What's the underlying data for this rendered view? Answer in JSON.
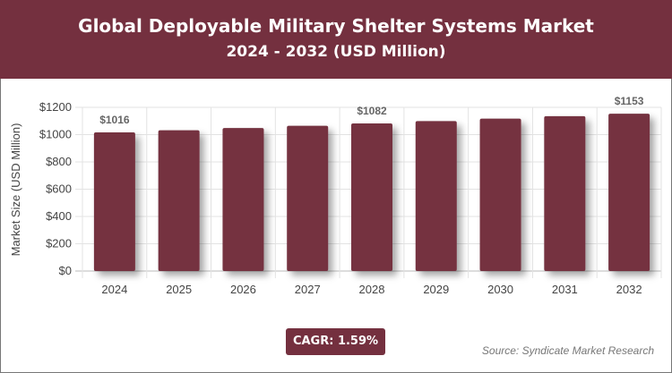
{
  "header": {
    "title": "Global Deployable Military Shelter Systems Market",
    "subtitle": "2024 - 2032 (USD Million)"
  },
  "chart_data": {
    "type": "bar",
    "categories": [
      "2024",
      "2025",
      "2026",
      "2027",
      "2028",
      "2029",
      "2030",
      "2031",
      "2032"
    ],
    "values": [
      1016,
      1032,
      1048,
      1065,
      1082,
      1099,
      1117,
      1135,
      1153
    ],
    "data_labels": {
      "0": "$1016",
      "4": "$1082",
      "8": "$1153"
    },
    "ylabel": "Market Size (USD Million)",
    "ylim": [
      0,
      1200
    ],
    "yticks": [
      "$0",
      "$200",
      "$400",
      "$600",
      "$800",
      "$1000",
      "$1200"
    ],
    "grid": true,
    "bar_color": "#74303f"
  },
  "footer": {
    "cagr": "CAGR: 1.59%",
    "source": "Source: Syndicate Market Research"
  }
}
